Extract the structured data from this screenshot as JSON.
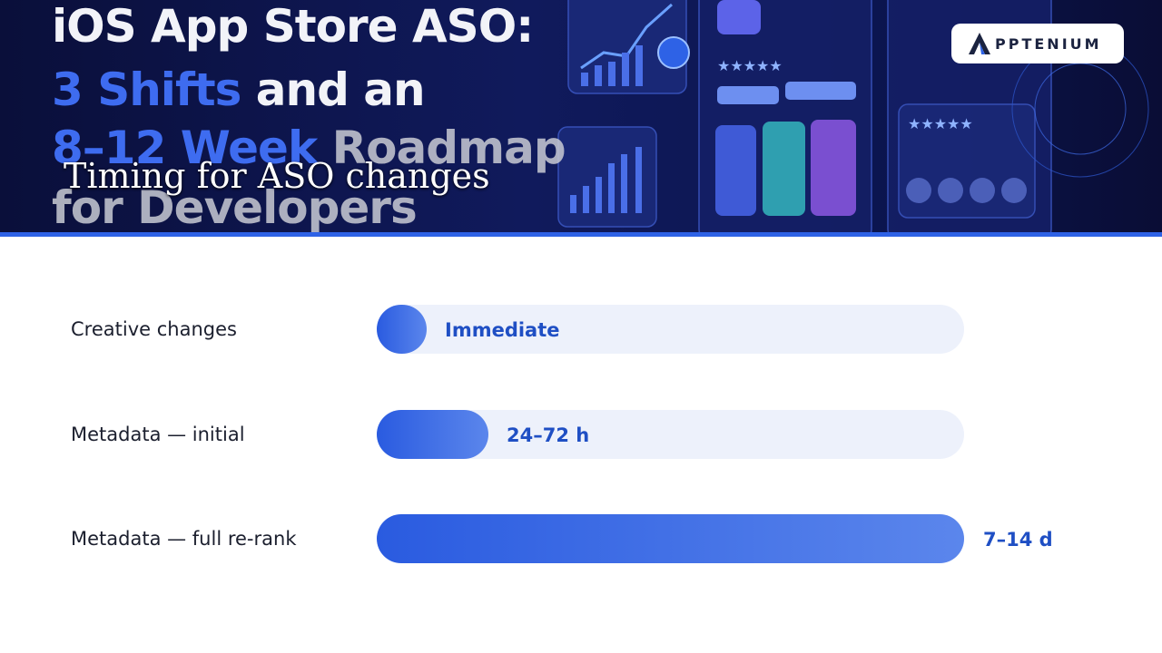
{
  "banner": {
    "title_lines": [
      [
        "iOS App Store ASO:"
      ],
      [
        "3 Shifts",
        " and an"
      ],
      [
        "8–12 Week",
        " Roadmap"
      ],
      [
        "for Developers"
      ]
    ],
    "overlay_title": "Timing for ASO changes",
    "logo": "PPTENIUM"
  },
  "rows": [
    {
      "label": "Creative changes",
      "value_label": "Immediate"
    },
    {
      "label": "Metadata — initial",
      "value_label": "24–72 h"
    },
    {
      "label": "Metadata — full re-rank",
      "value_label": "7–14 d"
    }
  ]
}
